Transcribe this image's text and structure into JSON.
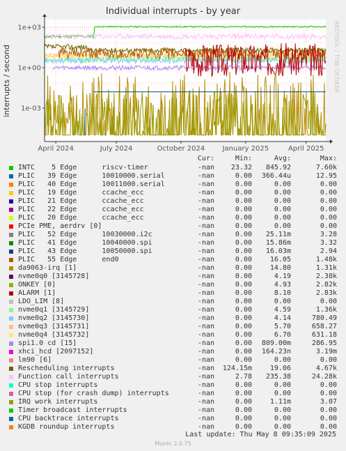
{
  "title": "Individual interrupts - by year",
  "ylabel": "interrupts / second",
  "watermark": "RRDTOOL / TOBI OETIKER",
  "legend_header": {
    "cur": "Cur:",
    "min": "Min:",
    "avg": "Avg:",
    "max": "Max:"
  },
  "legend": [
    {
      "name": "INTC    5 Edge      riscv-timer",
      "color": "#00cc00",
      "cur": "-nan",
      "min": "23.32",
      "avg": "845.92",
      "max": "7.60k"
    },
    {
      "name": "PLIC   39 Edge      10010000.serial",
      "color": "#0066b3",
      "cur": "-nan",
      "min": "0.00",
      "avg": "366.44u",
      "max": "12.95"
    },
    {
      "name": "PLIC   40 Edge      10011000.serial",
      "color": "#ff8000",
      "cur": "-nan",
      "min": "0.00",
      "avg": "0.00",
      "max": "0.00"
    },
    {
      "name": "PLIC   19 Edge      ccache_ecc",
      "color": "#ffcc00",
      "cur": "-nan",
      "min": "0.00",
      "avg": "0.00",
      "max": "0.00"
    },
    {
      "name": "PLIC   21 Edge      ccache_ecc",
      "color": "#330099",
      "cur": "-nan",
      "min": "0.00",
      "avg": "0.00",
      "max": "0.00"
    },
    {
      "name": "PLIC   22 Edge      ccache_ecc",
      "color": "#990099",
      "cur": "-nan",
      "min": "0.00",
      "avg": "0.00",
      "max": "0.00"
    },
    {
      "name": "PLIC   20 Edge      ccache_ecc",
      "color": "#ccff00",
      "cur": "-nan",
      "min": "0.00",
      "avg": "0.00",
      "max": "0.00"
    },
    {
      "name": "PCIe PME, aerdrv [0]",
      "color": "#ff0000",
      "cur": "-nan",
      "min": "0.00",
      "avg": "0.00",
      "max": "0.00"
    },
    {
      "name": "PLIC   52 Edge      10030000.i2c",
      "color": "#808080",
      "cur": "-nan",
      "min": "0.00",
      "avg": "25.11m",
      "max": "3.28"
    },
    {
      "name": "PLIC   41 Edge      10040000.spi",
      "color": "#008f00",
      "cur": "-nan",
      "min": "0.00",
      "avg": "15.86m",
      "max": "3.32"
    },
    {
      "name": "PLIC   43 Edge      10050000.spi",
      "color": "#00487d",
      "cur": "-nan",
      "min": "0.00",
      "avg": "16.03m",
      "max": "2.94"
    },
    {
      "name": "PLIC   55 Edge      end0",
      "color": "#b35a00",
      "cur": "-nan",
      "min": "0.00",
      "avg": "16.05",
      "max": "1.48k"
    },
    {
      "name": "da9063-irq [1]",
      "color": "#b38f00",
      "cur": "-nan",
      "min": "0.00",
      "avg": "14.80",
      "max": "1.31k"
    },
    {
      "name": "nvme0q0 [3145728]",
      "color": "#6b006b",
      "cur": "-nan",
      "min": "0.00",
      "avg": "4.19",
      "max": "2.38k"
    },
    {
      "name": "ONKEY [0]",
      "color": "#8fb300",
      "cur": "-nan",
      "min": "0.00",
      "avg": "4.93",
      "max": "2.82k"
    },
    {
      "name": "ALARM [1]",
      "color": "#b30000",
      "cur": "-nan",
      "min": "0.00",
      "avg": "8.10",
      "max": "2.83k"
    },
    {
      "name": "LDO_LIM [8]",
      "color": "#bebebe",
      "cur": "-nan",
      "min": "0.00",
      "avg": "0.00",
      "max": "0.00"
    },
    {
      "name": "nvme0q1 [3145729]",
      "color": "#80ff80",
      "cur": "-nan",
      "min": "0.00",
      "avg": "4.59",
      "max": "1.36k"
    },
    {
      "name": "nvme0q2 [3145730]",
      "color": "#80c9ff",
      "cur": "-nan",
      "min": "0.00",
      "avg": "4.14",
      "max": "780.49"
    },
    {
      "name": "nvme0q3 [3145731]",
      "color": "#ffc080",
      "cur": "-nan",
      "min": "0.00",
      "avg": "5.70",
      "max": "658.27"
    },
    {
      "name": "nvme0q4 [3145732]",
      "color": "#ffe680",
      "cur": "-nan",
      "min": "0.00",
      "avg": "6.70",
      "max": "631.18"
    },
    {
      "name": "spi1.0 cd [15]",
      "color": "#aa80ff",
      "cur": "-nan",
      "min": "0.00",
      "avg": "809.00m",
      "max": "286.95"
    },
    {
      "name": "xhci_hcd [2097152]",
      "color": "#ee00cc",
      "cur": "-nan",
      "min": "0.00",
      "avg": "164.23n",
      "max": "3.19m"
    },
    {
      "name": "lm90 [6]",
      "color": "#ff8080",
      "cur": "-nan",
      "min": "0.00",
      "avg": "0.00",
      "max": "0.00"
    },
    {
      "name": "Rescheduling interrupts",
      "color": "#666600",
      "cur": "-nan",
      "min": "124.15m",
      "avg": "19.06",
      "max": "4.67k"
    },
    {
      "name": "Function call interrupts",
      "color": "#ffbfff",
      "cur": "-nan",
      "min": "2.78",
      "avg": "235.38",
      "max": "24.28k"
    },
    {
      "name": "CPU stop interrupts",
      "color": "#00ffcc",
      "cur": "-nan",
      "min": "0.00",
      "avg": "0.00",
      "max": "0.00"
    },
    {
      "name": "CPU stop (for crash dump) interrupts",
      "color": "#cc6699",
      "cur": "-nan",
      "min": "0.00",
      "avg": "0.00",
      "max": "0.00"
    },
    {
      "name": "IRQ work interrupts",
      "color": "#999900",
      "cur": "-nan",
      "min": "0.00",
      "avg": "1.11m",
      "max": "3.07"
    },
    {
      "name": "Timer broadcast interrupts",
      "color": "#00cc00",
      "cur": "-nan",
      "min": "0.00",
      "avg": "0.00",
      "max": "0.00"
    },
    {
      "name": "CPU backtrace interrupts",
      "color": "#0066b3",
      "cur": "-nan",
      "min": "0.00",
      "avg": "0.00",
      "max": "0.00"
    },
    {
      "name": "KGDB roundup interrupts",
      "color": "#ff8000",
      "cur": "-nan",
      "min": "0.00",
      "avg": "0.00",
      "max": "0.00"
    }
  ],
  "last_update": "Last update: Thu May  8 09:35:09 2025",
  "footer": "Munin 2.0.75",
  "chart_data": {
    "type": "line",
    "title": "Individual interrupts - by year",
    "ylabel": "interrupts / second",
    "y_scale": "log",
    "y_ticks": [
      {
        "value": 1000,
        "label": "1e+03"
      },
      {
        "value": 1,
        "label": "1e+00"
      },
      {
        "value": 0.001,
        "label": "1e-03"
      }
    ],
    "x_ticks": [
      "April 2024",
      "July 2024",
      "October 2024",
      "January 2025",
      "April 2025"
    ],
    "grid": true,
    "series": [
      {
        "name": "INTC    5 Edge      riscv-timer",
        "color": "#00cc00",
        "seed": 11,
        "segments": [
          [
            0.0,
            0.175,
            140,
            300,
            0.35
          ],
          [
            0.175,
            1.0,
            850,
            1400,
            0.22
          ]
        ]
      },
      {
        "name": "Function call interrupts",
        "color": "#ffbfff",
        "seed": 23,
        "segments": [
          [
            0.0,
            1.0,
            120,
            350,
            0.45
          ]
        ]
      },
      {
        "name": "Rescheduling interrupts",
        "color": "#666600",
        "seed": 37,
        "segments": [
          [
            0.0,
            0.15,
            20,
            55,
            0.5
          ],
          [
            0.15,
            1.0,
            12,
            30,
            0.45
          ]
        ]
      },
      {
        "name": "nvme0q3 [3145731]",
        "color": "#ffc080",
        "seed": 41,
        "segments": [
          [
            0.0,
            1.0,
            5,
            14,
            0.45
          ]
        ]
      },
      {
        "name": "nvme0q4 [3145732]",
        "color": "#ffe680",
        "seed": 43,
        "segments": [
          [
            0.0,
            1.0,
            4,
            12,
            0.45
          ]
        ]
      },
      {
        "name": "nvme0q1 [3145729]",
        "color": "#80ff80",
        "seed": 47,
        "segments": [
          [
            0.0,
            0.17,
            2,
            6,
            0.4
          ],
          [
            0.17,
            1.0,
            2.5,
            8,
            0.45
          ]
        ]
      },
      {
        "name": "nvme0q2 [3145730]",
        "color": "#80c9ff",
        "seed": 53,
        "segments": [
          [
            0.0,
            1.0,
            2,
            6,
            0.45
          ]
        ]
      },
      {
        "name": "spi1.0 cd [15]",
        "color": "#aa80ff",
        "seed": 59,
        "segments": [
          [
            0.03,
            1.0,
            0.6,
            1.6,
            0.4
          ]
        ]
      },
      {
        "name": "PLIC   55 Edge      end0",
        "color": "#b35a00",
        "seed": 61,
        "segments": [
          [
            0.05,
            1.0,
            5,
            25,
            0.6
          ]
        ]
      },
      {
        "name": "ALARM [1]",
        "color": "#b30000",
        "seed": 67,
        "segments": [
          [
            0.5,
            1.0,
            0.5,
            30,
            0.7
          ]
        ]
      },
      {
        "name": "da9063-irq [1]",
        "color": "#b38f00",
        "seed": 71,
        "segments": [
          [
            0.0,
            1.0,
            1e-05,
            0.5,
            1.0
          ]
        ]
      },
      {
        "name": "IRQ work interrupts",
        "color": "#999900",
        "seed": 73,
        "segments": [
          [
            0.0,
            1.0,
            1e-05,
            0.02,
            1.0
          ]
        ]
      },
      {
        "name": "PLIC   43 Edge      10050000.spi",
        "color": "#00487d",
        "seed": 79,
        "segments": [
          [
            0.175,
            1.0,
            0.016,
            0.016,
            0.0
          ]
        ]
      },
      {
        "name": "PLIC   39 Edge      10010000.serial",
        "color": "#0066b3",
        "seed": 83,
        "segments": [
          [
            0.14,
            0.145,
            1e-05,
            0.02,
            1.0
          ]
        ]
      }
    ]
  }
}
